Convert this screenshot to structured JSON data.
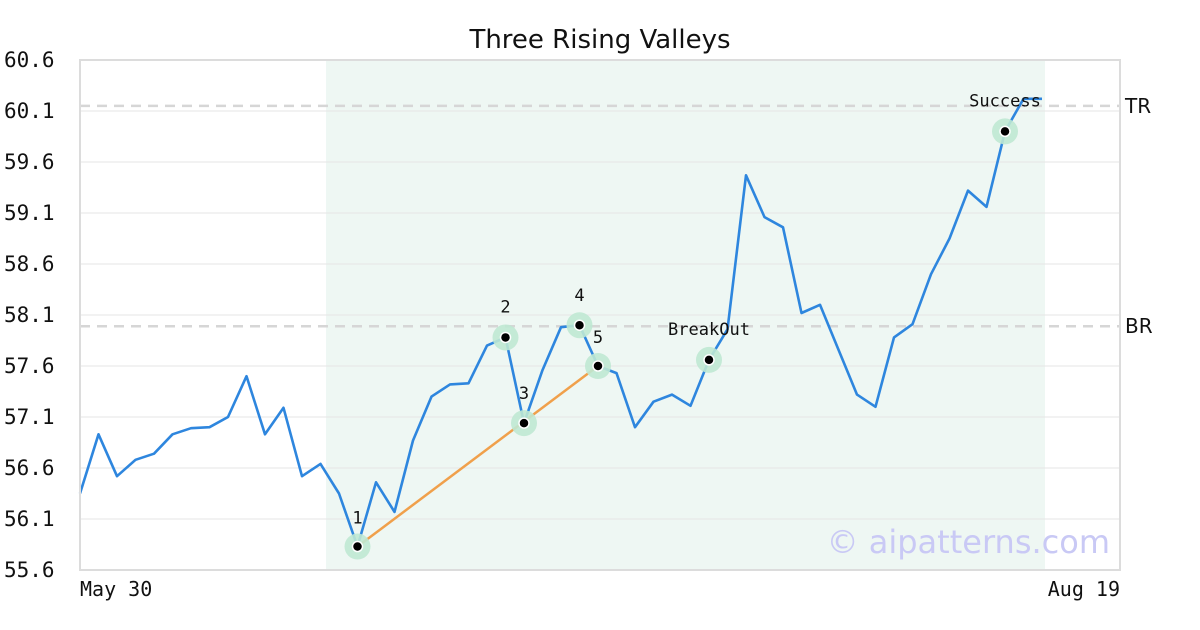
{
  "chart_data": {
    "type": "line",
    "title": "Three Rising Valleys",
    "xlabel": "",
    "ylabel": "",
    "ylim": [
      55.6,
      60.6
    ],
    "yticks": [
      "55.6",
      "56.1",
      "56.6",
      "57.1",
      "57.6",
      "58.1",
      "58.6",
      "59.1",
      "59.6",
      "60.1",
      "60.6"
    ],
    "x_tick_labels": {
      "start": "May 30",
      "end": "Aug 19"
    },
    "grid": true,
    "series": [
      {
        "color": "#2e86de",
        "values": [
          56.35,
          56.93,
          56.52,
          56.68,
          56.74,
          56.93,
          56.99,
          57.0,
          57.1,
          57.5,
          56.93,
          57.19,
          56.52,
          56.64,
          56.35,
          55.83,
          56.46,
          56.17,
          56.87,
          57.3,
          57.42,
          57.43,
          57.8,
          57.88,
          57.04,
          57.56,
          57.98,
          58.0,
          57.6,
          57.53,
          57.0,
          57.25,
          57.32,
          57.21,
          57.66,
          57.96,
          59.47,
          59.06,
          58.96,
          58.12,
          58.2,
          57.76,
          57.32,
          57.2,
          57.88,
          58.01,
          58.5,
          58.85,
          59.32,
          59.16,
          59.9,
          60.22,
          60.22
        ]
      }
    ],
    "highlight_range": {
      "from_index": 13,
      "to_index": 52,
      "color": "#eef7f3"
    },
    "levels": [
      {
        "label": "TR",
        "value": 60.15
      },
      {
        "label": "BR",
        "value": 57.99
      }
    ],
    "points": [
      {
        "label": "1",
        "index": 15,
        "value": 55.83
      },
      {
        "label": "2",
        "index": 23,
        "value": 57.88
      },
      {
        "label": "3",
        "index": 24,
        "value": 57.04
      },
      {
        "label": "4",
        "index": 27,
        "value": 58.0
      },
      {
        "label": "5",
        "index": 28,
        "value": 57.6
      }
    ],
    "annotations": [
      {
        "label": "BreakOut",
        "index": 34,
        "value": 57.66
      },
      {
        "label": "Success",
        "index": 50,
        "value": 59.9
      }
    ],
    "trendline": {
      "from_point": "1",
      "to_point": "5",
      "color": "#f0a04b"
    },
    "watermark": "© aipatterns.com"
  }
}
